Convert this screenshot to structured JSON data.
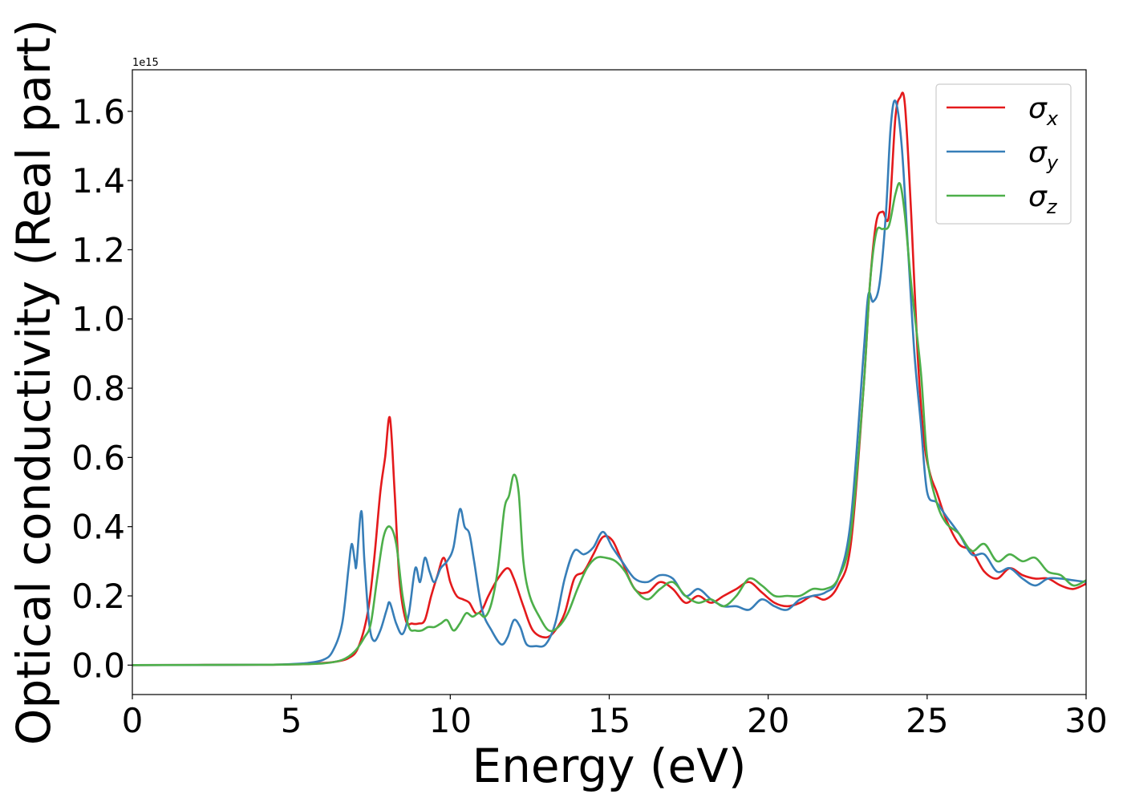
{
  "chart_data": {
    "type": "line",
    "xlabel": "Energy (eV)",
    "ylabel": "Optical conductivity (Real part)",
    "offset_text": "1e15",
    "xlim": [
      0,
      30
    ],
    "ylim": [
      -0.085,
      1.72
    ],
    "xticks": [
      0,
      5,
      10,
      15,
      20,
      25,
      30
    ],
    "xtick_labels": [
      "0",
      "5",
      "10",
      "15",
      "20",
      "25",
      "30"
    ],
    "yticks": [
      0.0,
      0.2,
      0.4,
      0.6,
      0.8,
      1.0,
      1.2,
      1.4,
      1.6
    ],
    "ytick_labels": [
      "0.0",
      "0.2",
      "0.4",
      "0.6",
      "0.8",
      "1.0",
      "1.2",
      "1.4",
      "1.6"
    ],
    "grid": false,
    "legend": {
      "position": "top-right"
    },
    "series": [
      {
        "name": "σ",
        "subscript": "x",
        "color": "#e41a1c",
        "x": [
          0,
          4,
          5,
          5.5,
          6,
          6.4,
          6.8,
          7.1,
          7.4,
          7.6,
          7.8,
          7.95,
          8.1,
          8.25,
          8.4,
          8.6,
          8.8,
          9.0,
          9.2,
          9.4,
          9.6,
          9.8,
          10.0,
          10.2,
          10.4,
          10.6,
          10.8,
          11.0,
          11.2,
          11.5,
          11.8,
          12.0,
          12.3,
          12.6,
          13.0,
          13.3,
          13.6,
          13.9,
          14.2,
          14.5,
          14.8,
          15.1,
          15.4,
          15.8,
          16.2,
          16.6,
          17.0,
          17.4,
          17.8,
          18.2,
          18.6,
          19.0,
          19.4,
          19.8,
          20.2,
          20.6,
          21.0,
          21.4,
          21.8,
          22.2,
          22.6,
          23.0,
          23.2,
          23.4,
          23.6,
          23.8,
          24.0,
          24.15,
          24.3,
          24.5,
          24.7,
          24.9,
          25.1,
          25.3,
          25.6,
          26.0,
          26.4,
          26.8,
          27.2,
          27.6,
          28.0,
          28.4,
          28.8,
          29.2,
          29.6,
          30.0
        ],
        "y": [
          0,
          0.001,
          0.002,
          0.003,
          0.006,
          0.01,
          0.02,
          0.05,
          0.15,
          0.3,
          0.5,
          0.6,
          0.715,
          0.5,
          0.25,
          0.13,
          0.12,
          0.12,
          0.13,
          0.2,
          0.26,
          0.31,
          0.24,
          0.2,
          0.19,
          0.18,
          0.15,
          0.16,
          0.2,
          0.25,
          0.28,
          0.25,
          0.17,
          0.1,
          0.08,
          0.1,
          0.15,
          0.25,
          0.27,
          0.32,
          0.37,
          0.36,
          0.3,
          0.22,
          0.21,
          0.24,
          0.22,
          0.18,
          0.2,
          0.18,
          0.2,
          0.22,
          0.24,
          0.21,
          0.18,
          0.17,
          0.18,
          0.2,
          0.19,
          0.23,
          0.35,
          0.8,
          1.1,
          1.28,
          1.31,
          1.3,
          1.58,
          1.64,
          1.62,
          1.3,
          0.9,
          0.65,
          0.55,
          0.5,
          0.42,
          0.35,
          0.33,
          0.27,
          0.25,
          0.28,
          0.26,
          0.25,
          0.25,
          0.23,
          0.22,
          0.235
        ]
      },
      {
        "name": "σ",
        "subscript": "y",
        "color": "#377eb8",
        "x": [
          0,
          4,
          5,
          5.5,
          6,
          6.3,
          6.6,
          6.8,
          6.9,
          7.0,
          7.05,
          7.2,
          7.3,
          7.45,
          7.6,
          7.8,
          8.0,
          8.1,
          8.3,
          8.5,
          8.7,
          8.9,
          9.05,
          9.2,
          9.35,
          9.5,
          9.7,
          9.9,
          10.1,
          10.3,
          10.45,
          10.6,
          10.75,
          11.0,
          11.3,
          11.6,
          11.8,
          12.0,
          12.2,
          12.4,
          12.7,
          13.0,
          13.3,
          13.6,
          13.9,
          14.2,
          14.5,
          14.8,
          15.1,
          15.4,
          15.8,
          16.2,
          16.6,
          17.0,
          17.4,
          17.8,
          18.2,
          18.6,
          19.0,
          19.4,
          19.8,
          20.2,
          20.6,
          21.0,
          21.4,
          21.8,
          22.2,
          22.6,
          23.0,
          23.15,
          23.3,
          23.5,
          23.7,
          23.85,
          24.0,
          24.2,
          24.4,
          24.6,
          24.8,
          25.0,
          25.3,
          25.6,
          26.0,
          26.4,
          26.8,
          27.2,
          27.6,
          28.0,
          28.4,
          28.8,
          29.2,
          29.6,
          30.0
        ],
        "y": [
          0,
          0.001,
          0.003,
          0.006,
          0.015,
          0.04,
          0.12,
          0.28,
          0.35,
          0.3,
          0.29,
          0.445,
          0.3,
          0.12,
          0.07,
          0.1,
          0.16,
          0.18,
          0.12,
          0.09,
          0.15,
          0.28,
          0.24,
          0.31,
          0.27,
          0.24,
          0.28,
          0.3,
          0.34,
          0.45,
          0.4,
          0.38,
          0.3,
          0.16,
          0.1,
          0.06,
          0.08,
          0.13,
          0.11,
          0.06,
          0.055,
          0.06,
          0.12,
          0.25,
          0.33,
          0.32,
          0.34,
          0.385,
          0.34,
          0.3,
          0.25,
          0.24,
          0.26,
          0.25,
          0.2,
          0.22,
          0.19,
          0.17,
          0.17,
          0.16,
          0.19,
          0.17,
          0.16,
          0.19,
          0.2,
          0.21,
          0.25,
          0.42,
          0.9,
          1.07,
          1.05,
          1.1,
          1.3,
          1.55,
          1.63,
          1.5,
          1.2,
          0.9,
          0.7,
          0.5,
          0.47,
          0.43,
          0.38,
          0.32,
          0.32,
          0.27,
          0.28,
          0.25,
          0.23,
          0.25,
          0.25,
          0.245,
          0.24
        ]
      },
      {
        "name": "σ",
        "subscript": "z",
        "color": "#4daf4a",
        "x": [
          0,
          4,
          5,
          6,
          6.6,
          7.0,
          7.3,
          7.5,
          7.7,
          7.9,
          8.1,
          8.3,
          8.5,
          8.7,
          8.9,
          9.1,
          9.3,
          9.5,
          9.7,
          9.9,
          10.1,
          10.3,
          10.5,
          10.7,
          10.9,
          11.1,
          11.3,
          11.5,
          11.7,
          11.85,
          12.0,
          12.15,
          12.3,
          12.5,
          12.8,
          13.1,
          13.4,
          13.7,
          14.0,
          14.3,
          14.6,
          14.9,
          15.2,
          15.5,
          15.8,
          16.2,
          16.6,
          17.0,
          17.4,
          17.8,
          18.2,
          18.6,
          19.0,
          19.4,
          19.8,
          20.2,
          20.6,
          21.0,
          21.4,
          21.8,
          22.2,
          22.6,
          23.0,
          23.2,
          23.4,
          23.6,
          23.8,
          24.0,
          24.15,
          24.3,
          24.5,
          24.8,
          25.0,
          25.3,
          25.6,
          26.0,
          26.4,
          26.8,
          27.2,
          27.6,
          28.0,
          28.4,
          28.8,
          29.2,
          29.6,
          30.0
        ],
        "y": [
          0,
          0.001,
          0.002,
          0.005,
          0.015,
          0.04,
          0.08,
          0.12,
          0.25,
          0.37,
          0.4,
          0.35,
          0.2,
          0.11,
          0.1,
          0.1,
          0.11,
          0.11,
          0.12,
          0.13,
          0.1,
          0.12,
          0.15,
          0.14,
          0.15,
          0.14,
          0.18,
          0.28,
          0.45,
          0.49,
          0.55,
          0.5,
          0.3,
          0.2,
          0.14,
          0.1,
          0.11,
          0.15,
          0.22,
          0.28,
          0.31,
          0.31,
          0.3,
          0.27,
          0.22,
          0.19,
          0.22,
          0.24,
          0.2,
          0.18,
          0.19,
          0.17,
          0.2,
          0.25,
          0.23,
          0.2,
          0.2,
          0.2,
          0.22,
          0.22,
          0.25,
          0.38,
          0.8,
          1.1,
          1.25,
          1.26,
          1.27,
          1.36,
          1.39,
          1.3,
          1.1,
          0.85,
          0.6,
          0.47,
          0.41,
          0.38,
          0.33,
          0.35,
          0.3,
          0.32,
          0.3,
          0.31,
          0.27,
          0.26,
          0.23,
          0.245
        ]
      }
    ]
  }
}
